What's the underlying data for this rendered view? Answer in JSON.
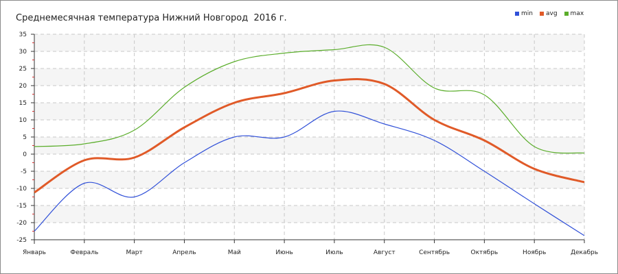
{
  "chart_data": {
    "type": "line",
    "title": "Среднемесячная температура Нижний Новгород  2016 г.",
    "xlabel": "",
    "ylabel": "",
    "ylim": [
      -25,
      35
    ],
    "yticks": [
      35,
      30,
      25,
      20,
      15,
      10,
      5,
      0,
      -5,
      -10,
      -15,
      -20,
      -25
    ],
    "grid": true,
    "legend_position": "top-right",
    "categories": [
      "Январь",
      "Февраль",
      "Март",
      "Апрель",
      "Май",
      "Июнь",
      "Июль",
      "Август",
      "Сентябрь",
      "Октябрь",
      "Ноябрь",
      "Декабрь"
    ],
    "series": [
      {
        "name": "min",
        "color": "#3050d8",
        "values": [
          -22.5,
          -8.5,
          -12.5,
          -2.5,
          5,
          5,
          12.5,
          8.8,
          4,
          -5,
          -14.5,
          -23.8
        ]
      },
      {
        "name": "avg",
        "color": "#e05a28",
        "values": [
          -11.2,
          -1.8,
          -1,
          7.8,
          15,
          17.8,
          21.5,
          20.5,
          10,
          4,
          -4.3,
          -8.2
        ]
      },
      {
        "name": "max",
        "color": "#5aad2a",
        "values": [
          2.2,
          3,
          7,
          19.5,
          27,
          29.5,
          30.5,
          31.2,
          19.3,
          17.3,
          2.2,
          0.3
        ]
      }
    ]
  }
}
